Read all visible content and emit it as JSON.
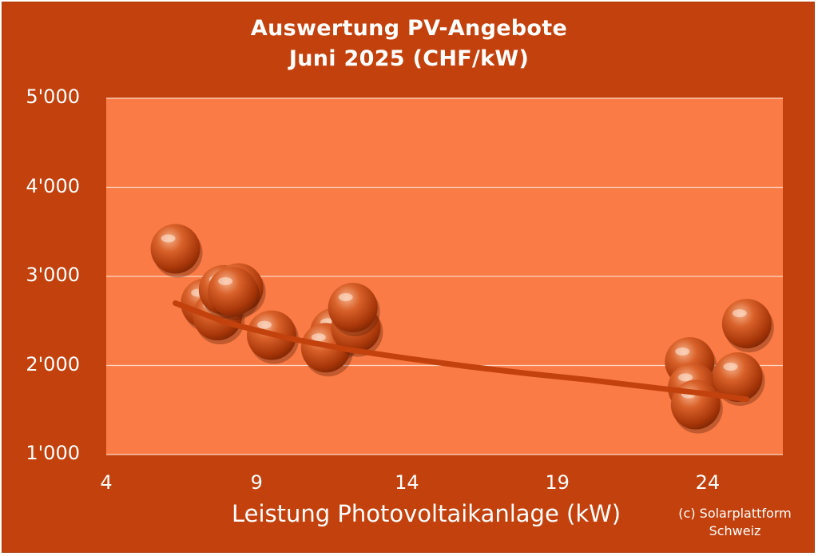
{
  "chart_data": {
    "type": "scatter",
    "title": "Auswertung PV-Angebote",
    "subtitle": "Juni 2025 (CHF/kW)",
    "xlabel": "Leistung Photovoltaikanlage (kW)",
    "ylabel": "",
    "xlim": [
      4,
      26.5
    ],
    "ylim": [
      1000,
      5000
    ],
    "x_ticks": [
      "4",
      "9",
      "14",
      "19",
      "24"
    ],
    "x_tick_values": [
      4,
      9,
      14,
      19,
      24
    ],
    "y_ticks": [
      "1'000",
      "2'000",
      "3'000",
      "4'000",
      "5'000"
    ],
    "y_tick_values": [
      1000,
      2000,
      3000,
      4000,
      5000
    ],
    "grid": "horizontal",
    "legend": "none",
    "points": [
      {
        "x": 6.3,
        "y": 3310
      },
      {
        "x": 7.3,
        "y": 2700
      },
      {
        "x": 7.7,
        "y": 2560
      },
      {
        "x": 7.9,
        "y": 2850
      },
      {
        "x": 8.4,
        "y": 2870
      },
      {
        "x": 8.2,
        "y": 2830
      },
      {
        "x": 9.5,
        "y": 2340
      },
      {
        "x": 11.6,
        "y": 2370
      },
      {
        "x": 11.3,
        "y": 2200
      },
      {
        "x": 12.3,
        "y": 2420
      },
      {
        "x": 12.2,
        "y": 2650
      },
      {
        "x": 23.4,
        "y": 2040
      },
      {
        "x": 23.5,
        "y": 1750
      },
      {
        "x": 23.6,
        "y": 1560
      },
      {
        "x": 25.0,
        "y": 1870
      },
      {
        "x": 25.3,
        "y": 2470
      }
    ],
    "trendline": {
      "type": "power",
      "x": [
        6.3,
        8,
        10,
        12,
        14,
        16,
        18,
        20,
        22,
        24,
        25.3
      ],
      "y": [
        2700,
        2480,
        2310,
        2180,
        2080,
        1990,
        1910,
        1840,
        1760,
        1680,
        1620
      ]
    },
    "colors": {
      "background": "#c2410c",
      "plot_area": "#fa7b45",
      "gridline": "#fcd9c6",
      "marker": "#c2410c",
      "marker_highlight": "#f0a07a",
      "trendline": "#c2410c",
      "text": "#ffffff"
    }
  },
  "copyright": {
    "line1": "(c) Solarplattform",
    "line2": "Schweiz"
  }
}
